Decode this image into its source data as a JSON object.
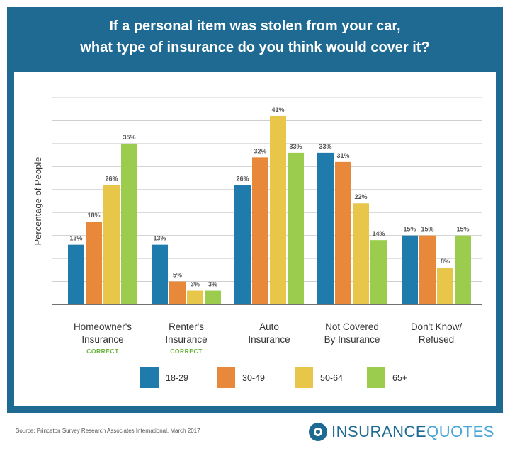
{
  "header": {
    "title_line1": "If a personal item was stolen from your car,",
    "title_line2": "what type of insurance do you think would cover it?"
  },
  "footer": {
    "source": "Source: Princeton Survey Research Associates International, March 2017",
    "logo_part1": "INSURANCE",
    "logo_part2": "QUOTES"
  },
  "colors": {
    "frame": "#1f6a92",
    "correct_label": "#6db33f",
    "series": [
      "#1f7bab",
      "#e8883a",
      "#e8c64a",
      "#9ccc4e"
    ],
    "grid": "#cfcfcf",
    "text": "#333333"
  },
  "chart_data": {
    "type": "bar",
    "ylabel": "Percentage of People",
    "ylim": [
      0,
      45
    ],
    "grid": true,
    "categories": [
      {
        "line1": "Homeowner's",
        "line2": "Insurance",
        "note": "CORRECT"
      },
      {
        "line1": "Renter's",
        "line2": "Insurance",
        "note": "CORRECT"
      },
      {
        "line1": "Auto",
        "line2": "Insurance",
        "note": ""
      },
      {
        "line1": "Not Covered",
        "line2": "By Insurance",
        "note": ""
      },
      {
        "line1": "Don't Know/",
        "line2": "Refused",
        "note": ""
      }
    ],
    "series": [
      {
        "name": "18-29",
        "values": [
          13,
          13,
          26,
          33,
          15
        ]
      },
      {
        "name": "30-49",
        "values": [
          18,
          5,
          32,
          31,
          15
        ]
      },
      {
        "name": "50-64",
        "values": [
          26,
          3,
          41,
          22,
          8
        ]
      },
      {
        "name": "65+",
        "values": [
          35,
          3,
          33,
          14,
          15
        ]
      }
    ],
    "value_suffix": "%",
    "legend_placement": "bottom"
  }
}
